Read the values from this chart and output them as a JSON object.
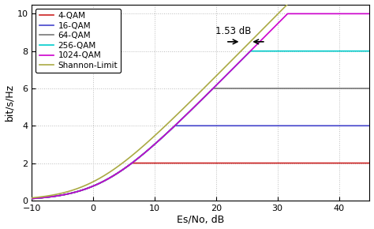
{
  "xlim": [
    -10,
    45
  ],
  "ylim": [
    0,
    10.5
  ],
  "xlabel": "Es/No, dB",
  "ylabel": "bit/s/Hz",
  "yticks": [
    0,
    2,
    4,
    6,
    8,
    10
  ],
  "xticks": [
    -10,
    0,
    10,
    20,
    30,
    40
  ],
  "curves": [
    {
      "label": "4-QAM",
      "capacity": 2,
      "color": "#cc2222",
      "k": 0.28,
      "x0": 2.0
    },
    {
      "label": "16-QAM",
      "capacity": 4,
      "color": "#4444cc",
      "k": 0.28,
      "x0": 8.0
    },
    {
      "label": "64-QAM",
      "capacity": 6,
      "color": "#777777",
      "k": 0.28,
      "x0": 14.0
    },
    {
      "label": "256-QAM",
      "capacity": 8,
      "color": "#00cccc",
      "k": 0.28,
      "x0": 20.0
    },
    {
      "label": "1024-QAM",
      "capacity": 10,
      "color": "#cc00cc",
      "k": 0.28,
      "x0": 26.0
    }
  ],
  "shannon_color": "#aaaa44",
  "shannon_label": "Shannon-Limit",
  "annotation_text": "1.53 dB",
  "background_color": "#ffffff",
  "grid_color": "#bbbbbb",
  "figsize": [
    4.74,
    2.9
  ],
  "dpi": 100
}
